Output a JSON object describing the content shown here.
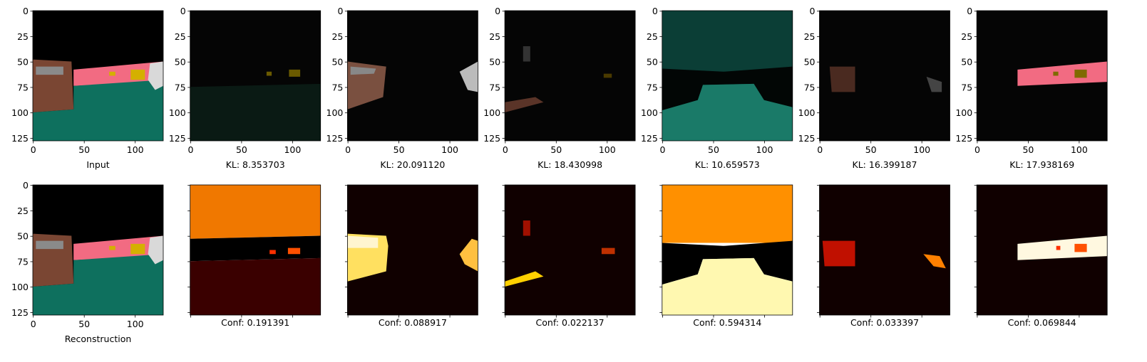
{
  "figure": {
    "xlim": [
      -0.5,
      127.5
    ],
    "ylim": [
      127.5,
      -0.5
    ],
    "xticks": [
      0,
      50,
      100
    ],
    "yticks": [
      0,
      25,
      50,
      75,
      100,
      125
    ],
    "top": [
      {
        "label": "Input",
        "ticklabels": true
      },
      {
        "label": "KL: 8.353703",
        "ticklabels": true
      },
      {
        "label": "KL: 20.091120",
        "ticklabels": true
      },
      {
        "label": "KL: 18.430998",
        "ticklabels": true
      },
      {
        "label": "KL: 10.659573",
        "ticklabels": true
      },
      {
        "label": "KL: 16.399187",
        "ticklabels": true
      },
      {
        "label": "KL: 17.938169",
        "ticklabels": true
      }
    ],
    "bottom": [
      {
        "label": "Reconstruction",
        "ticklabels": true
      },
      {
        "label": "Conf: 0.191391",
        "ticklabels": false
      },
      {
        "label": "Conf: 0.088917",
        "ticklabels": false
      },
      {
        "label": "Conf: 0.022137",
        "ticklabels": false
      },
      {
        "label": "Conf: 0.594314",
        "ticklabels": false
      },
      {
        "label": "Conf: 0.033397",
        "ticklabels": false
      },
      {
        "label": "Conf: 0.069844",
        "ticklabels": false
      }
    ]
  }
}
